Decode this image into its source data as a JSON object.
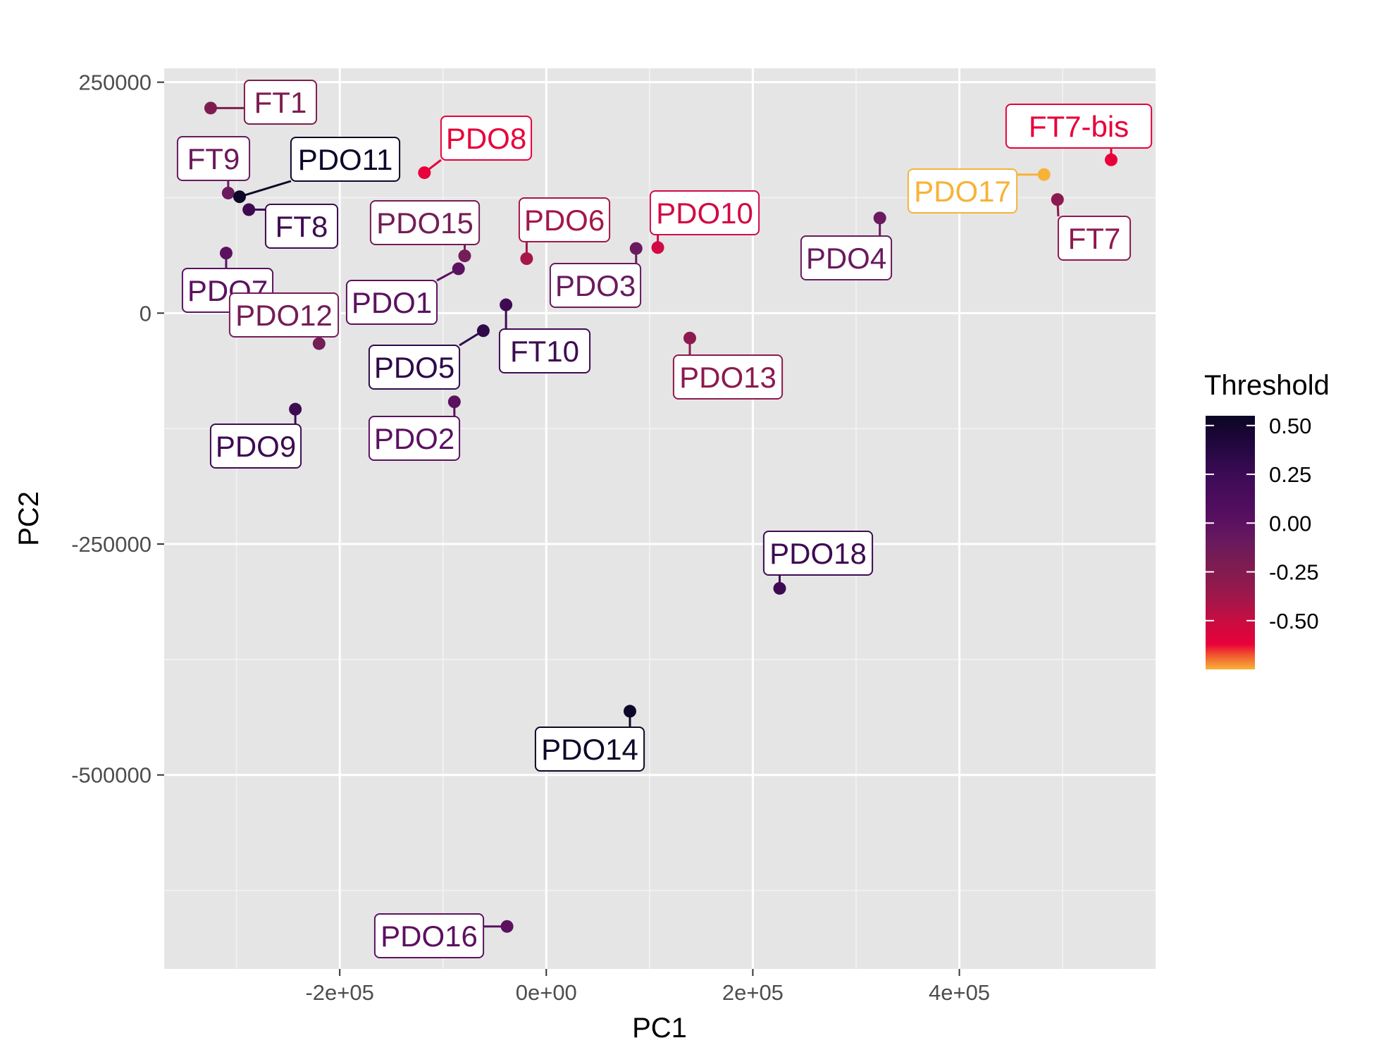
{
  "chart_data": {
    "type": "scatter",
    "xlabel": "PC1",
    "ylabel": "PC2",
    "xlim": [
      -370000,
      590000
    ],
    "ylim": [
      -710000,
      265000
    ],
    "x_ticks": [
      {
        "value": -200000,
        "label": "-2e+05"
      },
      {
        "value": 0,
        "label": "0e+00"
      },
      {
        "value": 200000,
        "label": "2e+05"
      },
      {
        "value": 400000,
        "label": "4e+05"
      }
    ],
    "y_ticks": [
      {
        "value": 250000,
        "label": "250000"
      },
      {
        "value": 0,
        "label": "0"
      },
      {
        "value": -250000,
        "label": "-250000"
      },
      {
        "value": -500000,
        "label": "-500000"
      }
    ],
    "grid": true,
    "legend": {
      "title": "Threshold",
      "position": "right",
      "ticks": [
        "0.50",
        "0.25",
        "0.00",
        "-0.25",
        "-0.50"
      ],
      "tick_values": [
        0.5,
        0.25,
        0.0,
        -0.25,
        -0.5
      ],
      "range": [
        -0.75,
        0.55
      ],
      "colors": [
        {
          "value": 0.55,
          "color": "#0b0524"
        },
        {
          "value": 0.4,
          "color": "#22073f"
        },
        {
          "value": 0.25,
          "color": "#3b0b55"
        },
        {
          "value": 0.1,
          "color": "#4f0d5e"
        },
        {
          "value": 0.0,
          "color": "#5c1160"
        },
        {
          "value": -0.1,
          "color": "#6a1a5e"
        },
        {
          "value": -0.2,
          "color": "#7a1c52"
        },
        {
          "value": -0.3,
          "color": "#8d1a4e"
        },
        {
          "value": -0.4,
          "color": "#a5164a"
        },
        {
          "value": -0.5,
          "color": "#c70d42"
        },
        {
          "value": -0.62,
          "color": "#e8003a"
        },
        {
          "value": -0.68,
          "color": "#f25a2e"
        },
        {
          "value": -0.75,
          "color": "#f7b338"
        }
      ]
    },
    "points": [
      {
        "label": "FT1",
        "x": -325000,
        "y": 222000,
        "threshold": -0.28,
        "color": "#7d1d4f"
      },
      {
        "label": "FT9",
        "x": -308000,
        "y": 130000,
        "threshold": -0.15,
        "color": "#6a1a5e"
      },
      {
        "label": "PDO11",
        "x": -297000,
        "y": 126000,
        "threshold": 0.55,
        "color": "#0d0828"
      },
      {
        "label": "FT8",
        "x": -288000,
        "y": 112000,
        "threshold": 0.2,
        "color": "#3e0b52"
      },
      {
        "label": "PDO8",
        "x": -118000,
        "y": 152000,
        "threshold": -0.65,
        "color": "#e8003a"
      },
      {
        "label": "PDO15",
        "x": -79000,
        "y": 62000,
        "threshold": -0.2,
        "color": "#741d56"
      },
      {
        "label": "PDO1",
        "x": -85000,
        "y": 48000,
        "threshold": 0.05,
        "color": "#5c1160"
      },
      {
        "label": "PDO6",
        "x": -19000,
        "y": 59000,
        "threshold": -0.4,
        "color": "#a5164a"
      },
      {
        "label": "PDO7",
        "x": -310000,
        "y": 65000,
        "threshold": 0.0,
        "color": "#5c1160"
      },
      {
        "label": "PDO12",
        "x": -220000,
        "y": -33000,
        "threshold": -0.2,
        "color": "#741d56"
      },
      {
        "label": "FT10",
        "x": -39000,
        "y": 9000,
        "threshold": 0.2,
        "color": "#3e0b52"
      },
      {
        "label": "PDO5",
        "x": -61000,
        "y": -19000,
        "threshold": 0.3,
        "color": "#2e0a49"
      },
      {
        "label": "PDO9",
        "x": -243000,
        "y": -104000,
        "threshold": 0.2,
        "color": "#3e0b52"
      },
      {
        "label": "PDO2",
        "x": -89000,
        "y": -96000,
        "threshold": 0.05,
        "color": "#5c1160"
      },
      {
        "label": "PDO3",
        "x": 87000,
        "y": 70000,
        "threshold": -0.12,
        "color": "#6a1a5e"
      },
      {
        "label": "PDO10",
        "x": 108000,
        "y": 71000,
        "threshold": -0.55,
        "color": "#d10a45"
      },
      {
        "label": "PDO13",
        "x": 139000,
        "y": -27000,
        "threshold": -0.3,
        "color": "#8d1a4e"
      },
      {
        "label": "PDO4",
        "x": 323000,
        "y": 103000,
        "threshold": -0.1,
        "color": "#6a1a5e"
      },
      {
        "label": "PDO17",
        "x": 482000,
        "y": 150000,
        "threshold": -0.75,
        "color": "#f7b338"
      },
      {
        "label": "FT7",
        "x": 495000,
        "y": 123000,
        "threshold": -0.28,
        "color": "#8d1a4e"
      },
      {
        "label": "FT7-bis",
        "x": 547000,
        "y": 166000,
        "threshold": -0.6,
        "color": "#e8003a"
      },
      {
        "label": "PDO18",
        "x": 226000,
        "y": -298000,
        "threshold": 0.2,
        "color": "#3e0b52"
      },
      {
        "label": "PDO14",
        "x": 81000,
        "y": -431000,
        "threshold": 0.55,
        "color": "#0d0828"
      },
      {
        "label": "PDO16",
        "x": -38000,
        "y": -664000,
        "threshold": 0.05,
        "color": "#5c1160"
      }
    ]
  }
}
